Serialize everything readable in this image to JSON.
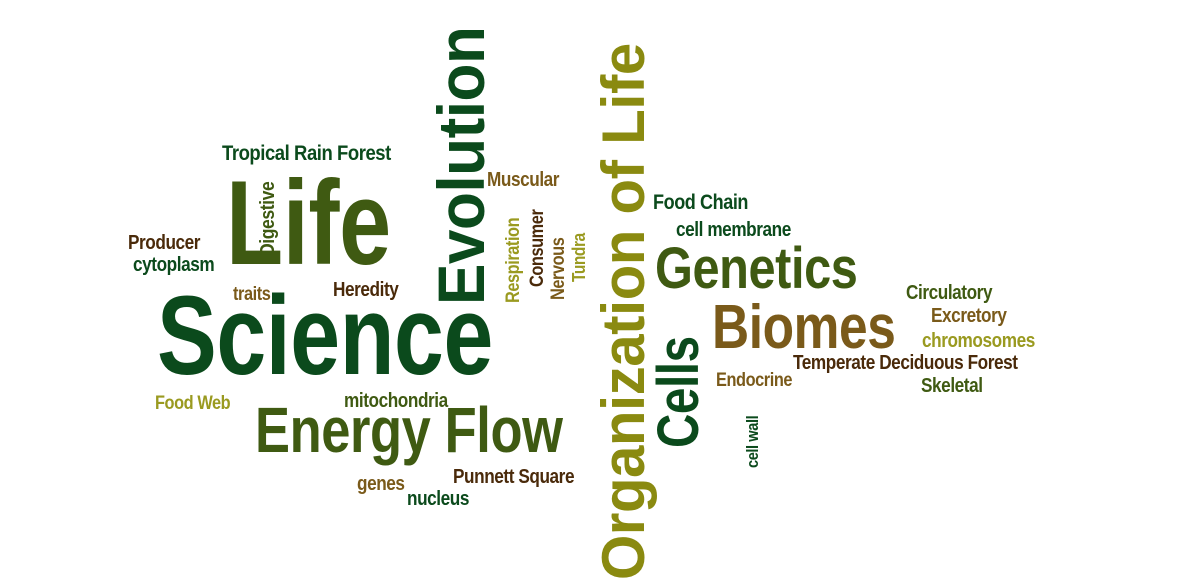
{
  "colors": {
    "dark_green": "#0b4a1c",
    "forest_green": "#3f5a12",
    "olive": "#8a8a10",
    "brown": "#4a2a0a",
    "tan": "#7a5a1a",
    "olive_light": "#9a9a20"
  },
  "words": {
    "life": "Life",
    "science": "Science",
    "evolution": "Evolution",
    "organization_of_life": "Organization of Life",
    "genetics": "Genetics",
    "biomes": "Biomes",
    "cells": "Cells",
    "energy_flow": "Energy Flow",
    "tropical_rain_forest": "Tropical Rain Forest",
    "digestive": "Digestive",
    "muscular": "Muscular",
    "respiration": "Respiration",
    "consumer": "Consumer",
    "nervous": "Nervous",
    "tundra": "Tundra",
    "food_chain": "Food Chain",
    "cell_membrane": "cell membrane",
    "producer": "Producer",
    "cytoplasm": "cytoplasm",
    "traits": "traits",
    "heredity": "Heredity",
    "circulatory": "Circulatory",
    "excretory": "Excretory",
    "chromosomes": "chromosomes",
    "temperate_deciduous_forest": "Temperate Deciduous Forest",
    "endocrine": "Endocrine",
    "skeletal": "Skeletal",
    "food_web": "Food Web",
    "mitochondria": "mitochondria",
    "cell_wall": "cell wall",
    "genes": "genes",
    "punnett_square": "Punnett Square",
    "nucleus": "nucleus"
  }
}
